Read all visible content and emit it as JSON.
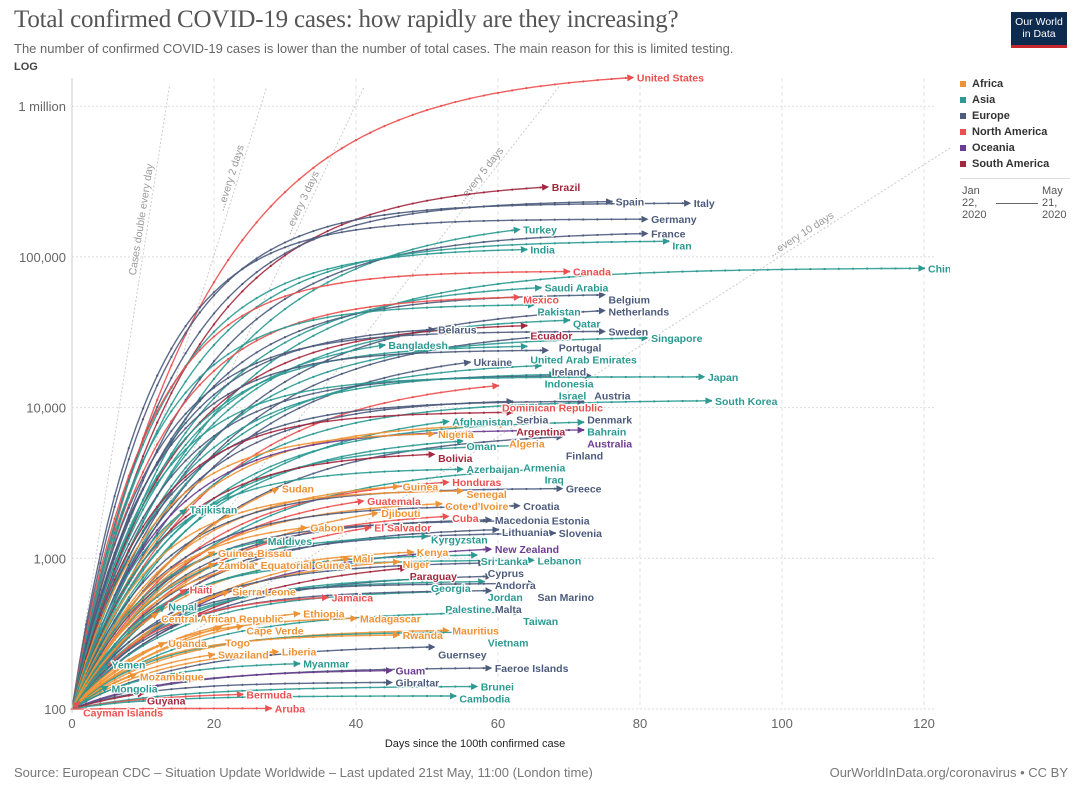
{
  "header": {
    "title": "Total confirmed COVID-19 cases: how rapidly are they increasing?",
    "subtitle": "The number of confirmed COVID-19 cases is lower than the number of total cases. The main reason for this is limited testing.",
    "scale": "LOG",
    "logo": "Our World in Data"
  },
  "legend": {
    "items": [
      {
        "label": "Africa",
        "color": "#ee9235"
      },
      {
        "label": "Asia",
        "color": "#2b9a92"
      },
      {
        "label": "Europe",
        "color": "#4d5b7c"
      },
      {
        "label": "North America",
        "color": "#ec4f4f"
      },
      {
        "label": "Oceania",
        "color": "#6a3d8f"
      },
      {
        "label": "South America",
        "color": "#a3283f"
      }
    ],
    "timeline_start": "Jan 22, 2020",
    "timeline_end": "May 21, 2020"
  },
  "footer": {
    "source": "Source: European CDC – Situation Update Worldwide – Last updated 21st May, 11:00 (London time)",
    "credit": "OurWorldInData.org/coronavirus • CC BY"
  },
  "chart_data": {
    "type": "line",
    "title": "Total confirmed COVID-19 cases: how rapidly are they increasing?",
    "xlabel": "Days since the 100th confirmed case",
    "ylabel": "",
    "yscale": "log",
    "xlim": [
      0,
      125
    ],
    "ylim": [
      100,
      1500000
    ],
    "xticks": [
      0,
      20,
      40,
      60,
      80,
      100,
      120
    ],
    "yticks": [
      {
        "value": 100,
        "label": "100"
      },
      {
        "value": 1000,
        "label": "1,000"
      },
      {
        "value": 10000,
        "label": "10,000"
      },
      {
        "value": 100000,
        "label": "100,000"
      },
      {
        "value": 1000000,
        "label": "1 million"
      }
    ],
    "grid": true,
    "legend_position": "right",
    "guides": [
      {
        "label": "Cases double every day",
        "doubling_days": 1
      },
      {
        "label": "...every 2 days",
        "doubling_days": 2
      },
      {
        "label": "...every 3 days",
        "doubling_days": 3
      },
      {
        "label": "...every 5 days",
        "doubling_days": 5
      },
      {
        "label": "...every 10 days",
        "doubling_days": 10
      }
    ],
    "series": [
      {
        "name": "United States",
        "continent": "North America",
        "days": 79,
        "cases": 1550000
      },
      {
        "name": "Brazil",
        "continent": "South America",
        "days": 67,
        "cases": 291000
      },
      {
        "name": "Spain",
        "continent": "Europe",
        "days": 76,
        "cases": 233000
      },
      {
        "name": "Italy",
        "continent": "Europe",
        "days": 87,
        "cases": 227000
      },
      {
        "name": "Germany",
        "continent": "Europe",
        "days": 81,
        "cases": 178000
      },
      {
        "name": "Turkey",
        "continent": "Asia",
        "days": 63,
        "cases": 152000
      },
      {
        "name": "France",
        "continent": "Europe",
        "days": 81,
        "cases": 143000
      },
      {
        "name": "Iran",
        "continent": "Asia",
        "days": 84,
        "cases": 127000
      },
      {
        "name": "India",
        "continent": "Asia",
        "days": 64,
        "cases": 112000
      },
      {
        "name": "Canada",
        "continent": "North America",
        "days": 70,
        "cases": 80000
      },
      {
        "name": "China",
        "continent": "Asia",
        "days": 120,
        "cases": 84000
      },
      {
        "name": "Saudi Arabia",
        "continent": "Asia",
        "days": 66,
        "cases": 62500
      },
      {
        "name": "Belgium",
        "continent": "Europe",
        "days": 75,
        "cases": 56000
      },
      {
        "name": "Mexico",
        "continent": "North America",
        "days": 63,
        "cases": 54000
      },
      {
        "name": "Pakistan",
        "continent": "Asia",
        "days": 65,
        "cases": 48000
      },
      {
        "name": "Netherlands",
        "continent": "Europe",
        "days": 75,
        "cases": 44000
      },
      {
        "name": "Qatar",
        "continent": "Asia",
        "days": 70,
        "cases": 38000
      },
      {
        "name": "Ecuador",
        "continent": "South America",
        "days": 64,
        "cases": 35000
      },
      {
        "name": "Belarus",
        "continent": "Europe",
        "days": 51,
        "cases": 33000
      },
      {
        "name": "Sweden",
        "continent": "Europe",
        "days": 75,
        "cases": 32000
      },
      {
        "name": "Portugal",
        "continent": "Europe",
        "days": 68,
        "cases": 30000
      },
      {
        "name": "Singapore",
        "continent": "Asia",
        "days": 81,
        "cases": 29000
      },
      {
        "name": "Bangladesh",
        "continent": "Asia",
        "days": 44,
        "cases": 26000
      },
      {
        "name": "United Arab Emirates",
        "continent": "Asia",
        "days": 64,
        "cases": 25500
      },
      {
        "name": "Ireland",
        "continent": "Europe",
        "days": 67,
        "cases": 24000
      },
      {
        "name": "Ukraine",
        "continent": "Europe",
        "days": 56,
        "cases": 20000
      },
      {
        "name": "Indonesia",
        "continent": "Asia",
        "days": 66,
        "cases": 19000
      },
      {
        "name": "Israel",
        "continent": "Asia",
        "days": 68,
        "cases": 16600
      },
      {
        "name": "Austria",
        "continent": "Europe",
        "days": 73,
        "cases": 16300
      },
      {
        "name": "Japan",
        "continent": "Asia",
        "days": 89,
        "cases": 16000
      },
      {
        "name": "Dominican Republic",
        "continent": "North America",
        "days": 60,
        "cases": 14000
      },
      {
        "name": "South Korea",
        "continent": "Asia",
        "days": 90,
        "cases": 11100
      },
      {
        "name": "Serbia",
        "continent": "Europe",
        "days": 62,
        "cases": 11000
      },
      {
        "name": "Denmark",
        "continent": "Europe",
        "days": 72,
        "cases": 11000
      },
      {
        "name": "Argentina",
        "continent": "South America",
        "days": 62,
        "cases": 9300
      },
      {
        "name": "Afghanistan",
        "continent": "Asia",
        "days": 53,
        "cases": 8100
      },
      {
        "name": "Bahrain",
        "continent": "Asia",
        "days": 72,
        "cases": 8000
      },
      {
        "name": "Algeria",
        "continent": "Africa",
        "days": 61,
        "cases": 7700
      },
      {
        "name": "Australia",
        "continent": "Oceania",
        "days": 72,
        "cases": 7100
      },
      {
        "name": "Nigeria",
        "continent": "Africa",
        "days": 51,
        "cases": 6700
      },
      {
        "name": "Finland",
        "continent": "Europe",
        "days": 69,
        "cases": 6400
      },
      {
        "name": "Oman",
        "continent": "Asia",
        "days": 55,
        "cases": 6000
      },
      {
        "name": "Armenia",
        "continent": "Asia",
        "days": 63,
        "cases": 5600
      },
      {
        "name": "Bolivia",
        "continent": "South America",
        "days": 51,
        "cases": 4900
      },
      {
        "name": "Azerbaijan",
        "continent": "Asia",
        "days": 55,
        "cases": 3900
      },
      {
        "name": "Iraq",
        "continent": "Asia",
        "days": 66,
        "cases": 3900
      },
      {
        "name": "Honduras",
        "continent": "North America",
        "days": 53,
        "cases": 3200
      },
      {
        "name": "Guinea",
        "continent": "Africa",
        "days": 46,
        "cases": 3000
      },
      {
        "name": "Greece",
        "continent": "Europe",
        "days": 69,
        "cases": 2900
      },
      {
        "name": "Senegal",
        "continent": "Africa",
        "days": 55,
        "cases": 2800
      },
      {
        "name": "Sudan",
        "continent": "Africa",
        "days": 29,
        "cases": 2900
      },
      {
        "name": "Guatemala",
        "continent": "North America",
        "days": 41,
        "cases": 2400
      },
      {
        "name": "Cote d'Ivoire",
        "continent": "Africa",
        "days": 52,
        "cases": 2300
      },
      {
        "name": "Croatia",
        "continent": "Europe",
        "days": 63,
        "cases": 2230
      },
      {
        "name": "Tajikistan",
        "continent": "Asia",
        "days": 16,
        "cases": 2100
      },
      {
        "name": "Djibouti",
        "continent": "Africa",
        "days": 43,
        "cases": 2000
      },
      {
        "name": "Cuba",
        "continent": "North America",
        "days": 53,
        "cases": 1900
      },
      {
        "name": "Macedonia",
        "continent": "Europe",
        "days": 59,
        "cases": 1800
      },
      {
        "name": "Estonia",
        "continent": "Europe",
        "days": 67,
        "cases": 1780
      },
      {
        "name": "Gabon",
        "continent": "Africa",
        "days": 33,
        "cases": 1600
      },
      {
        "name": "El Salvador",
        "continent": "North America",
        "days": 42,
        "cases": 1600
      },
      {
        "name": "Lithuania",
        "continent": "Europe",
        "days": 60,
        "cases": 1550
      },
      {
        "name": "Slovenia",
        "continent": "Europe",
        "days": 68,
        "cases": 1470
      },
      {
        "name": "Kyrgyzstan",
        "continent": "Asia",
        "days": 50,
        "cases": 1400
      },
      {
        "name": "Maldives",
        "continent": "Asia",
        "days": 27,
        "cases": 1300
      },
      {
        "name": "New Zealand",
        "continent": "Oceania",
        "days": 59,
        "cases": 1150
      },
      {
        "name": "Guinea-Bissau",
        "continent": "Africa",
        "days": 20,
        "cases": 1100
      },
      {
        "name": "Kenya",
        "continent": "Africa",
        "days": 48,
        "cases": 1100
      },
      {
        "name": "Sri Lanka",
        "continent": "Asia",
        "days": 57,
        "cases": 1050
      },
      {
        "name": "Lebanon",
        "continent": "Asia",
        "days": 65,
        "cases": 970
      },
      {
        "name": "Mali",
        "continent": "Africa",
        "days": 39,
        "cases": 1000
      },
      {
        "name": "Niger",
        "continent": "Africa",
        "days": 46,
        "cases": 950
      },
      {
        "name": "Cyprus",
        "continent": "Europe",
        "days": 58,
        "cases": 930
      },
      {
        "name": "Zambia",
        "continent": "Africa",
        "days": 20,
        "cases": 920
      },
      {
        "name": "Equatorial Guinea",
        "continent": "Africa",
        "days": 26,
        "cases": 920
      },
      {
        "name": "Paraguay",
        "continent": "South America",
        "days": 47,
        "cases": 860
      },
      {
        "name": "Andorra",
        "continent": "Europe",
        "days": 59,
        "cases": 760
      },
      {
        "name": "Georgia",
        "continent": "Asia",
        "days": 50,
        "cases": 730
      },
      {
        "name": "Jordan",
        "continent": "Asia",
        "days": 58,
        "cases": 700
      },
      {
        "name": "San Marino",
        "continent": "Europe",
        "days": 65,
        "cases": 680
      },
      {
        "name": "Haiti",
        "continent": "North America",
        "days": 16,
        "cases": 620
      },
      {
        "name": "Sierra Leone",
        "continent": "Africa",
        "days": 22,
        "cases": 600
      },
      {
        "name": "Palestine",
        "continent": "Asia",
        "days": 52,
        "cases": 600
      },
      {
        "name": "Malta",
        "continent": "Europe",
        "days": 59,
        "cases": 610
      },
      {
        "name": "Jamaica",
        "continent": "North America",
        "days": 36,
        "cases": 550
      },
      {
        "name": "Nepal",
        "continent": "Asia",
        "days": 13,
        "cases": 480
      },
      {
        "name": "Taiwan",
        "continent": "Asia",
        "days": 63,
        "cases": 440
      },
      {
        "name": "Ethiopia",
        "continent": "Africa",
        "days": 32,
        "cases": 430
      },
      {
        "name": "Central African Republic",
        "continent": "Africa",
        "days": 12,
        "cases": 430
      },
      {
        "name": "Madagascar",
        "continent": "Africa",
        "days": 40,
        "cases": 400
      },
      {
        "name": "Togo",
        "continent": "Africa",
        "days": 21,
        "cases": 350
      },
      {
        "name": "Cape Verde",
        "continent": "Africa",
        "days": 24,
        "cases": 355
      },
      {
        "name": "Mauritius",
        "continent": "Africa",
        "days": 53,
        "cases": 332
      },
      {
        "name": "Vietnam",
        "continent": "Asia",
        "days": 58,
        "cases": 324
      },
      {
        "name": "Rwanda",
        "continent": "Africa",
        "days": 46,
        "cases": 310
      },
      {
        "name": "Uganda",
        "continent": "Africa",
        "days": 13,
        "cases": 275
      },
      {
        "name": "Guernsey",
        "continent": "Europe",
        "days": 51,
        "cases": 258
      },
      {
        "name": "Liberia",
        "continent": "Africa",
        "days": 29,
        "cases": 240
      },
      {
        "name": "Swaziland",
        "continent": "Africa",
        "days": 20,
        "cases": 230
      },
      {
        "name": "Myanmar",
        "continent": "Asia",
        "days": 32,
        "cases": 200
      },
      {
        "name": "Yemen",
        "continent": "Asia",
        "days": 5,
        "cases": 197
      },
      {
        "name": "Faeroe Islands",
        "continent": "Europe",
        "days": 59,
        "cases": 187
      },
      {
        "name": "Guam",
        "continent": "Oceania",
        "days": 45,
        "cases": 180
      },
      {
        "name": "Mozambique",
        "continent": "Africa",
        "days": 9,
        "cases": 170
      },
      {
        "name": "Gibraltar",
        "continent": "Europe",
        "days": 45,
        "cases": 150
      },
      {
        "name": "Mongolia",
        "continent": "Asia",
        "days": 5,
        "cases": 141
      },
      {
        "name": "Brunei",
        "continent": "Asia",
        "days": 57,
        "cases": 141
      },
      {
        "name": "Guyana",
        "continent": "South America",
        "days": 10,
        "cases": 127
      },
      {
        "name": "Bermuda",
        "continent": "North America",
        "days": 24,
        "cases": 125
      },
      {
        "name": "Cambodia",
        "continent": "Asia",
        "days": 54,
        "cases": 122
      },
      {
        "name": "Cayman Islands",
        "continent": "North America",
        "days": 1,
        "cases": 111
      },
      {
        "name": "Aruba",
        "continent": "North America",
        "days": 28,
        "cases": 101
      }
    ]
  }
}
